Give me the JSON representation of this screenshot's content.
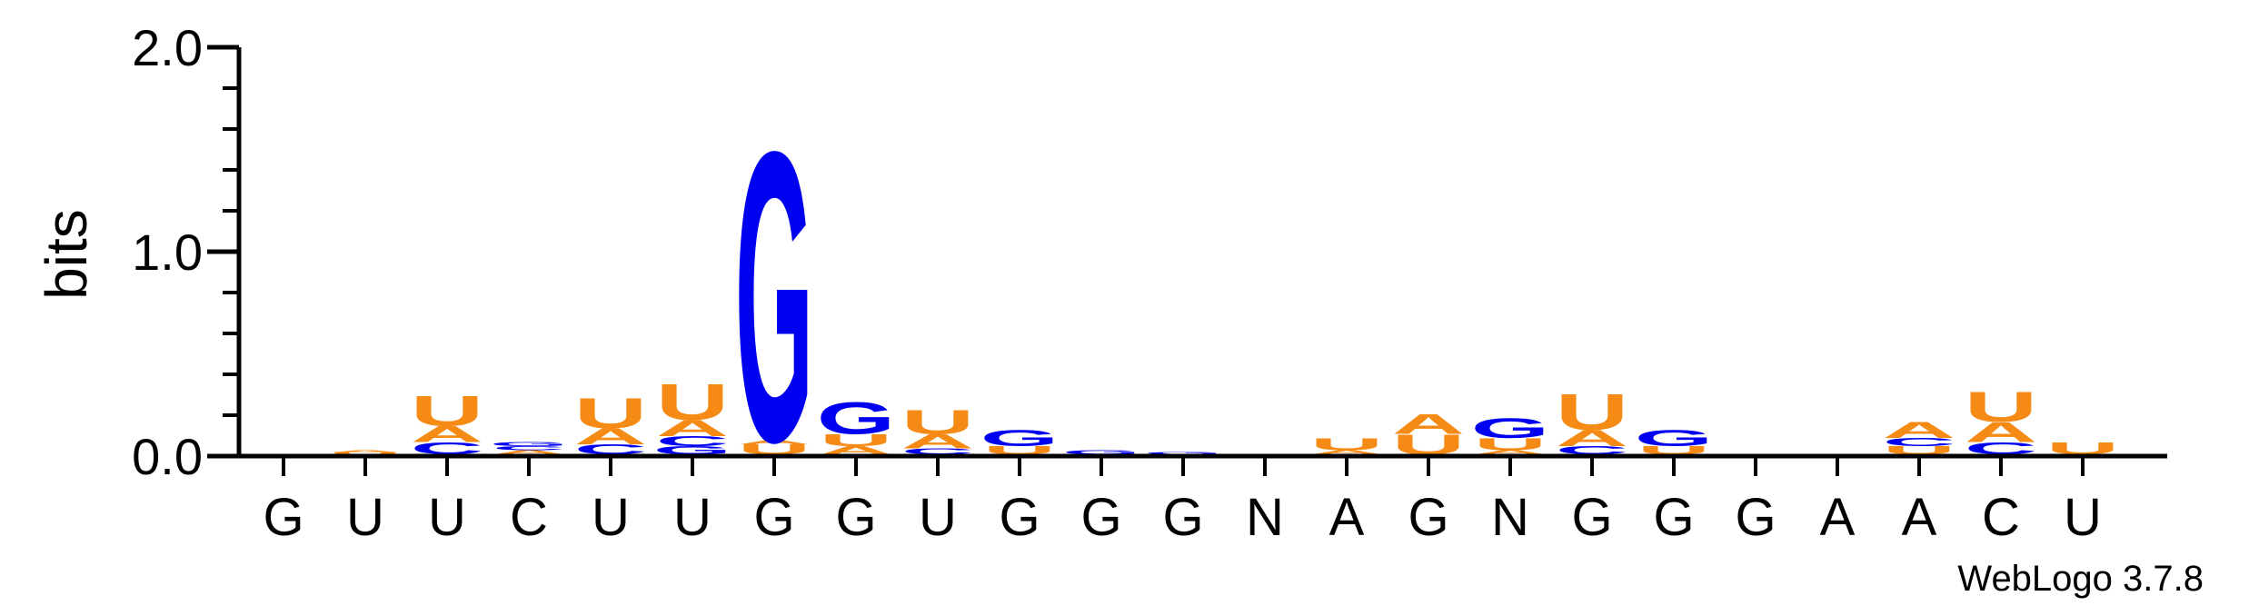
{
  "chart_data": {
    "type": "sequence-logo",
    "title": "",
    "xlabel": "",
    "ylabel": "bits",
    "ylim": [
      0,
      2.0
    ],
    "yticks": [
      "0.0",
      "1.0",
      "2.0"
    ],
    "positions": [
      "G",
      "U",
      "U",
      "C",
      "U",
      "U",
      "G",
      "G",
      "U",
      "G",
      "G",
      "G",
      "N",
      "A",
      "G",
      "N",
      "G",
      "G",
      "G",
      "A",
      "A",
      "C",
      "U"
    ],
    "colors": {
      "A": "#F58A14",
      "U": "#F58A14",
      "G": "#0000F0",
      "C": "#0000F0"
    },
    "stacks": [
      [],
      [
        {
          "letter": "U",
          "bits": 0.01
        },
        {
          "letter": "A",
          "bits": 0.01
        }
      ],
      [
        {
          "letter": "C",
          "bits": 0.06
        },
        {
          "letter": "A",
          "bits": 0.08
        },
        {
          "letter": "U",
          "bits": 0.15
        }
      ],
      [
        {
          "letter": "A",
          "bits": 0.02
        },
        {
          "letter": "C",
          "bits": 0.02
        },
        {
          "letter": "G",
          "bits": 0.02
        }
      ],
      [
        {
          "letter": "C",
          "bits": 0.05
        },
        {
          "letter": "A",
          "bits": 0.08
        },
        {
          "letter": "U",
          "bits": 0.15
        }
      ],
      [
        {
          "letter": "G",
          "bits": 0.04
        },
        {
          "letter": "C",
          "bits": 0.05
        },
        {
          "letter": "A",
          "bits": 0.08
        },
        {
          "letter": "U",
          "bits": 0.18
        }
      ],
      [
        {
          "letter": "U",
          "bits": 0.05
        },
        {
          "letter": "A",
          "bits": 0.02
        },
        {
          "letter": "G",
          "bits": 1.45
        }
      ],
      [
        {
          "letter": "A",
          "bits": 0.04
        },
        {
          "letter": "U",
          "bits": 0.06
        },
        {
          "letter": "G",
          "bits": 0.16
        }
      ],
      [
        {
          "letter": "C",
          "bits": 0.03
        },
        {
          "letter": "A",
          "bits": 0.07
        },
        {
          "letter": "U",
          "bits": 0.12
        }
      ],
      [
        {
          "letter": "U",
          "bits": 0.04
        },
        {
          "letter": "G",
          "bits": 0.08
        }
      ],
      [
        {
          "letter": "G",
          "bits": 0.02
        }
      ],
      [
        {
          "letter": "G",
          "bits": 0.01
        }
      ],
      [],
      [
        {
          "letter": "A",
          "bits": 0.02
        },
        {
          "letter": "U",
          "bits": 0.06
        }
      ],
      [
        {
          "letter": "U",
          "bits": 0.1
        },
        {
          "letter": "A",
          "bits": 0.1
        }
      ],
      [
        {
          "letter": "A",
          "bits": 0.02
        },
        {
          "letter": "U",
          "bits": 0.06
        },
        {
          "letter": "G",
          "bits": 0.1
        }
      ],
      [
        {
          "letter": "C",
          "bits": 0.04
        },
        {
          "letter": "A",
          "bits": 0.08
        },
        {
          "letter": "U",
          "bits": 0.18
        }
      ],
      [
        {
          "letter": "U",
          "bits": 0.04
        },
        {
          "letter": "G",
          "bits": 0.08
        }
      ],
      [],
      [],
      [
        {
          "letter": "U",
          "bits": 0.04
        },
        {
          "letter": "C",
          "bits": 0.04
        },
        {
          "letter": "A",
          "bits": 0.08
        }
      ],
      [
        {
          "letter": "C",
          "bits": 0.06
        },
        {
          "letter": "A",
          "bits": 0.1
        },
        {
          "letter": "U",
          "bits": 0.15
        }
      ],
      [
        {
          "letter": "U",
          "bits": 0.06
        }
      ]
    ],
    "credit": "WebLogo 3.7.8"
  }
}
